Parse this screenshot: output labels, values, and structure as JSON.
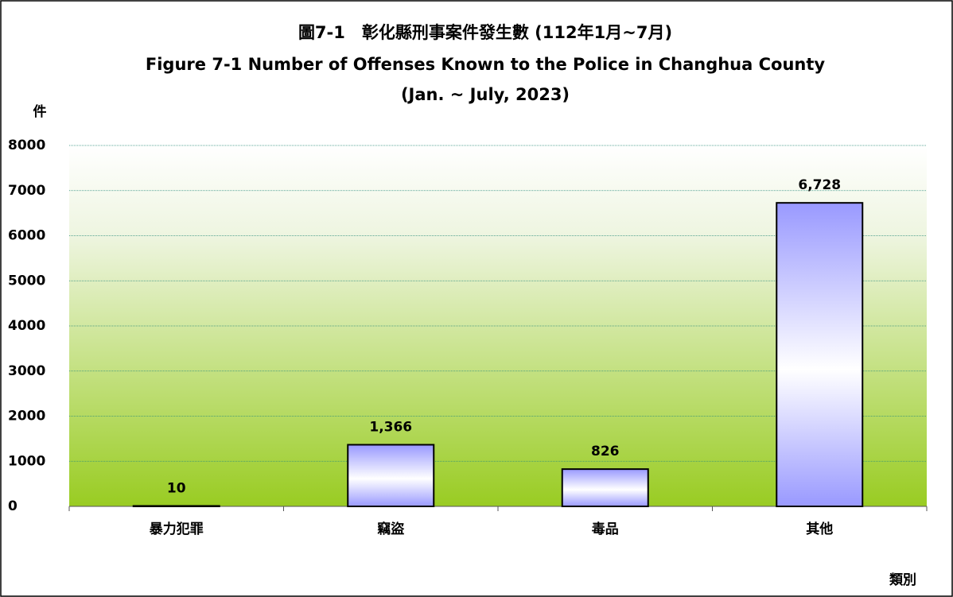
{
  "chart_data": {
    "type": "bar",
    "title": [
      "圖7-1　彰化縣刑事案件發生數 (112年1月~7月)",
      "Figure 7-1 Number of Offenses Known to the Police in Changhua County",
      "(Jan. ~ July, 2023)"
    ],
    "y_label": "件",
    "x_label": "類別",
    "categories": [
      "暴力犯罪",
      "竊盜",
      "毒品",
      "其他"
    ],
    "values": [
      10,
      1366,
      826,
      6728
    ],
    "value_labels": [
      "10",
      "1,366",
      "826",
      "6,728"
    ],
    "color": "#9999ff",
    "ylim": [
      0,
      8000
    ],
    "yticks": [
      0,
      1000,
      2000,
      3000,
      4000,
      5000,
      6000,
      7000,
      8000
    ],
    "grid": true
  }
}
